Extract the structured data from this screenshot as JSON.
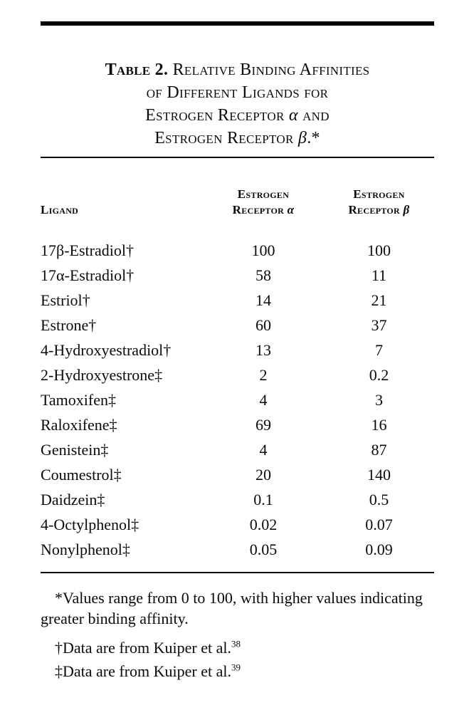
{
  "page": {
    "background": "#ffffff",
    "text_color": "#0a0a0a",
    "rule_color": "#000000"
  },
  "title": {
    "label": "Table 2.",
    "line1_rest": "Relative Binding Affinities",
    "line2": "of Different Ligands for",
    "line3_pre": "Estrogen Receptor ",
    "line3_greek": "α",
    "line3_post": " and",
    "line4_pre": "Estrogen Receptor ",
    "line4_greek": "β",
    "line4_post": ".*"
  },
  "table": {
    "col1_header": "Ligand",
    "col2_header": {
      "line1": "Estrogen",
      "line2_pre": "Receptor ",
      "greek": "α"
    },
    "col3_header": {
      "line1": "Estrogen",
      "line2_pre": "Receptor ",
      "greek": "β"
    },
    "rows": [
      {
        "ligand": "17β-Estradiol†",
        "alpha": "100",
        "beta": "100"
      },
      {
        "ligand": "17α-Estradiol†",
        "alpha": "58",
        "beta": "11"
      },
      {
        "ligand": "Estriol†",
        "alpha": "14",
        "beta": "21"
      },
      {
        "ligand": "Estrone†",
        "alpha": "60",
        "beta": "37"
      },
      {
        "ligand": "4-Hydroxyestradiol†",
        "alpha": "13",
        "beta": "7"
      },
      {
        "ligand": "2-Hydroxyestrone‡",
        "alpha": "2",
        "beta": "0.2"
      },
      {
        "ligand": "Tamoxifen‡",
        "alpha": "4",
        "beta": "3"
      },
      {
        "ligand": "Raloxifene‡",
        "alpha": "69",
        "beta": "16"
      },
      {
        "ligand": "Genistein‡",
        "alpha": "4",
        "beta": "87"
      },
      {
        "ligand": "Coumestrol‡",
        "alpha": "20",
        "beta": "140"
      },
      {
        "ligand": "Daidzein‡",
        "alpha": "0.1",
        "beta": "0.5"
      },
      {
        "ligand": "4-Octylphenol‡",
        "alpha": "0.02",
        "beta": "0.07"
      },
      {
        "ligand": "Nonylphenol‡",
        "alpha": "0.05",
        "beta": "0.09"
      }
    ]
  },
  "footnotes": [
    {
      "symbol": "*",
      "text": "Values range from 0 to 100, with higher values indicating greater binding affinity.",
      "ref": ""
    },
    {
      "symbol": "†",
      "text": "Data are from Kuiper et al.",
      "ref": "38"
    },
    {
      "symbol": "‡",
      "text": "Data are from Kuiper et al.",
      "ref": "39"
    }
  ]
}
